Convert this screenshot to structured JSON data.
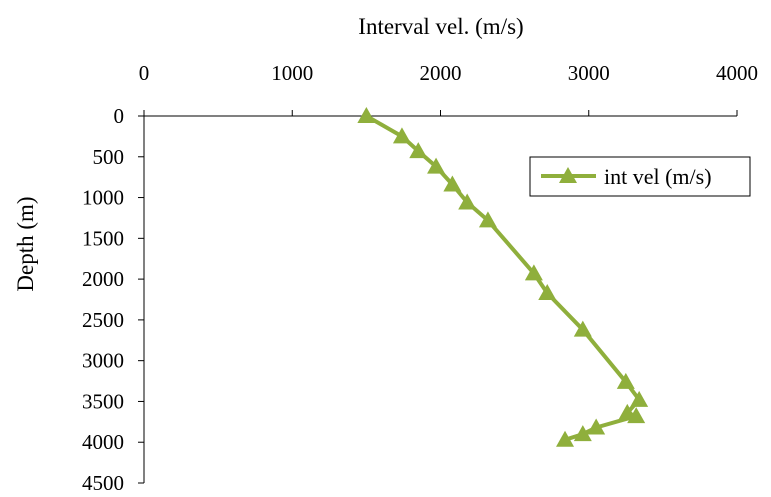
{
  "chart_data": {
    "type": "line",
    "xlabel": "Interval vel. (m/s)",
    "ylabel": "Depth (m)",
    "x_axis_position": "top",
    "y_axis_inverted": true,
    "xlim": [
      0,
      4000
    ],
    "ylim": [
      0,
      4500
    ],
    "x_ticks": [
      "0",
      "1000",
      "2000",
      "3000",
      "4000"
    ],
    "y_ticks": [
      "0",
      "500",
      "1000",
      "1500",
      "2000",
      "2500",
      "3000",
      "3500",
      "4000",
      "4500"
    ],
    "grid": false,
    "legend_position": "top-right",
    "series": [
      {
        "name": "int vel (m/s)",
        "color": "#8faf3c",
        "marker": "triangle",
        "points": [
          {
            "x": 1500,
            "y": 0
          },
          {
            "x": 1740,
            "y": 250
          },
          {
            "x": 1850,
            "y": 430
          },
          {
            "x": 1970,
            "y": 620
          },
          {
            "x": 2080,
            "y": 840
          },
          {
            "x": 2180,
            "y": 1060
          },
          {
            "x": 2320,
            "y": 1280
          },
          {
            "x": 2630,
            "y": 1930
          },
          {
            "x": 2720,
            "y": 2170
          },
          {
            "x": 2960,
            "y": 2620
          },
          {
            "x": 3250,
            "y": 3260
          },
          {
            "x": 3340,
            "y": 3480
          },
          {
            "x": 3260,
            "y": 3640
          },
          {
            "x": 3320,
            "y": 3680
          },
          {
            "x": 3050,
            "y": 3820
          },
          {
            "x": 2960,
            "y": 3900
          },
          {
            "x": 2840,
            "y": 3970
          }
        ]
      }
    ]
  }
}
